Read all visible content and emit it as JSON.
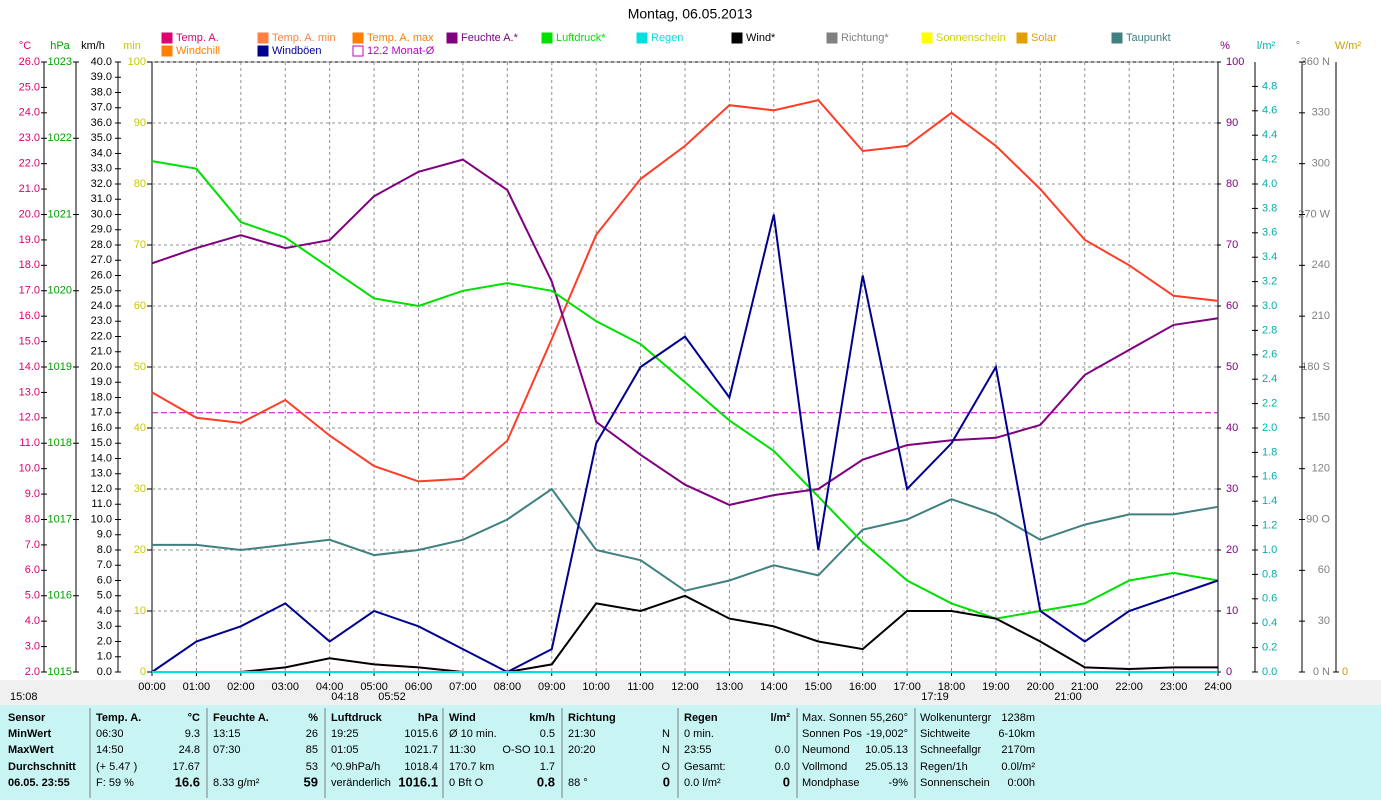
{
  "chart_data": {
    "type": "line",
    "title": "Montag, 06.05.2013",
    "categories": [
      "00:00",
      "01:00",
      "02:00",
      "03:00",
      "04:00",
      "05:00",
      "06:00",
      "07:00",
      "08:00",
      "09:00",
      "10:00",
      "11:00",
      "12:00",
      "13:00",
      "14:00",
      "15:00",
      "16:00",
      "17:00",
      "18:00",
      "19:00",
      "20:00",
      "21:00",
      "22:00",
      "23:00",
      "24:00"
    ],
    "legend": [
      {
        "name": "Temp. A.",
        "color": "#e00070"
      },
      {
        "name": "Windchill",
        "color": "#ff8000"
      },
      {
        "name": "Temp. A. min",
        "color": "#ff8040"
      },
      {
        "name": "Windböen",
        "color": "#000090"
      },
      {
        "name": "Temp. A. max",
        "color": "#ff8000"
      },
      {
        "name": "12.2 Monat-Ø",
        "color": "#c000c0",
        "style": "hollow"
      },
      {
        "name": "Feuchte A.*",
        "color": "#800080"
      },
      {
        "name": "Luftdruck*",
        "color": "#00e000"
      },
      {
        "name": "Regen",
        "color": "#00e0e0"
      },
      {
        "name": "Wind*",
        "color": "#000000"
      },
      {
        "name": "Richtung*",
        "color": "#808080"
      },
      {
        "name": "Sonnenschein",
        "color": "#ffff00"
      },
      {
        "name": "Solar",
        "color": "#e0a000"
      },
      {
        "name": "Taupunkt",
        "color": "#408080"
      }
    ],
    "axes": [
      {
        "unit": "°C",
        "color": "#e00070",
        "lim": [
          2,
          26
        ],
        "ticks": [
          {
            "value": 2,
            "label": "2.0"
          },
          {
            "value": 3,
            "label": "3.0"
          },
          {
            "value": 4,
            "label": "4.0"
          },
          {
            "value": 5,
            "label": "5.0"
          },
          {
            "value": 6,
            "label": "6.0"
          },
          {
            "value": 7,
            "label": "7.0"
          },
          {
            "value": 8,
            "label": "8.0"
          },
          {
            "value": 9,
            "label": "9.0"
          },
          {
            "value": 10,
            "label": "10.0"
          },
          {
            "value": 11,
            "label": "11.0"
          },
          {
            "value": 12,
            "label": "12.0"
          },
          {
            "value": 13,
            "label": "13.0"
          },
          {
            "value": 14,
            "label": "14.0"
          },
          {
            "value": 15,
            "label": "15.0"
          },
          {
            "value": 16,
            "label": "16.0"
          },
          {
            "value": 17,
            "label": "17.0"
          },
          {
            "value": 18,
            "label": "18.0"
          },
          {
            "value": 19,
            "label": "19.0"
          },
          {
            "value": 20,
            "label": "20.0"
          },
          {
            "value": 21,
            "label": "21.0"
          },
          {
            "value": 22,
            "label": "22.0"
          },
          {
            "value": 23,
            "label": "23.0"
          },
          {
            "value": 24,
            "label": "24.0"
          },
          {
            "value": 25,
            "label": "25.0"
          },
          {
            "value": 26,
            "label": "26.0"
          }
        ]
      },
      {
        "unit": "hPa",
        "color": "#00a000",
        "lim": [
          1015,
          1023
        ],
        "ticks": [
          1015,
          1016,
          1017,
          1018,
          1019,
          1020,
          1021,
          1022,
          1023
        ]
      },
      {
        "unit": "km/h",
        "color": "#000000",
        "lim": [
          0,
          40
        ],
        "ticks": [
          {
            "value": 0,
            "label": "0.0"
          },
          {
            "value": 1,
            "label": "1.0"
          },
          {
            "value": 2,
            "label": "2.0"
          },
          {
            "value": 3,
            "label": "3.0"
          },
          {
            "value": 4,
            "label": "4.0"
          },
          {
            "value": 5,
            "label": "5.0"
          },
          {
            "value": 6,
            "label": "6.0"
          },
          {
            "value": 7,
            "label": "7.0"
          },
          {
            "value": 8,
            "label": "8.0"
          },
          {
            "value": 9,
            "label": "9.0"
          },
          {
            "value": 10,
            "label": "10.0"
          },
          {
            "value": 11,
            "label": "11.0"
          },
          {
            "value": 12,
            "label": "12.0"
          },
          {
            "value": 13,
            "label": "13.0"
          },
          {
            "value": 14,
            "label": "14.0"
          },
          {
            "value": 15,
            "label": "15.0"
          },
          {
            "value": 16,
            "label": "16.0"
          },
          {
            "value": 17,
            "label": "17.0"
          },
          {
            "value": 18,
            "label": "18.0"
          },
          {
            "value": 19,
            "label": "19.0"
          },
          {
            "value": 20,
            "label": "20.0"
          },
          {
            "value": 21,
            "label": "21.0"
          },
          {
            "value": 22,
            "label": "22.0"
          },
          {
            "value": 23,
            "label": "23.0"
          },
          {
            "value": 24,
            "label": "24.0"
          },
          {
            "value": 25,
            "label": "25.0"
          },
          {
            "value": 26,
            "label": "26.0"
          },
          {
            "value": 27,
            "label": "27.0"
          },
          {
            "value": 28,
            "label": "28.0"
          },
          {
            "value": 29,
            "label": "29.0"
          },
          {
            "value": 30,
            "label": "30.0"
          },
          {
            "value": 31,
            "label": "31.0"
          },
          {
            "value": 32,
            "label": "32.0"
          },
          {
            "value": 33,
            "label": "33.0"
          },
          {
            "value": 34,
            "label": "34.0"
          },
          {
            "value": 35,
            "label": "35.0"
          },
          {
            "value": 36,
            "label": "36.0"
          },
          {
            "value": 37,
            "label": "37.0"
          },
          {
            "value": 38,
            "label": "38.0"
          },
          {
            "value": 39,
            "label": "39.0"
          },
          {
            "value": 40,
            "label": "40.0"
          }
        ]
      },
      {
        "unit": "min",
        "color": "#c8c800",
        "lim": [
          0,
          100
        ],
        "ticks": [
          0,
          10,
          20,
          30,
          40,
          50,
          60,
          70,
          80,
          90,
          100
        ]
      },
      {
        "unit": "%",
        "color": "#800080",
        "lim": [
          0,
          100
        ],
        "ticks": [
          0,
          10,
          20,
          30,
          40,
          50,
          60,
          70,
          80,
          90,
          100
        ],
        "grid": true
      },
      {
        "unit": "l/m²",
        "color": "#00b0b0",
        "lim": [
          0,
          5
        ],
        "ticks": [
          {
            "value": 0,
            "label": "0.0"
          },
          {
            "value": 0.2,
            "label": "0.2"
          },
          {
            "value": 0.4,
            "label": "0.4"
          },
          {
            "value": 0.6,
            "label": "0.6"
          },
          {
            "value": 0.8,
            "label": "0.8"
          },
          {
            "value": 1,
            "label": "1.0"
          },
          {
            "value": 1.2,
            "label": "1.2"
          },
          {
            "value": 1.4,
            "label": "1.4"
          },
          {
            "value": 1.6,
            "label": "1.6"
          },
          {
            "value": 1.8,
            "label": "1.8"
          },
          {
            "value": 2,
            "label": "2.0"
          },
          {
            "value": 2.2,
            "label": "2.2"
          },
          {
            "value": 2.4,
            "label": "2.4"
          },
          {
            "value": 2.6,
            "label": "2.6"
          },
          {
            "value": 2.8,
            "label": "2.8"
          },
          {
            "value": 3,
            "label": "3.0"
          },
          {
            "value": 3.2,
            "label": "3.2"
          },
          {
            "value": 3.4,
            "label": "3.4"
          },
          {
            "value": 3.6,
            "label": "3.6"
          },
          {
            "value": 3.8,
            "label": "3.8"
          },
          {
            "value": 4,
            "label": "4.0"
          },
          {
            "value": 4.2,
            "label": "4.2"
          },
          {
            "value": 4.4,
            "label": "4.4"
          },
          {
            "value": 4.6,
            "label": "4.6"
          },
          {
            "value": 4.8,
            "label": "4.8"
          }
        ]
      },
      {
        "unit": "°",
        "color": "#808080",
        "lim": [
          0,
          360
        ],
        "ticks": [
          {
            "value": 0,
            "label": "0 N"
          },
          30,
          60,
          {
            "value": 90,
            "label": "90 O"
          },
          120,
          150,
          {
            "value": 180,
            "label": "180 S"
          },
          210,
          240,
          {
            "value": 270,
            "label": "270 W"
          },
          300,
          330,
          {
            "value": 360,
            "label": "360 N"
          }
        ]
      },
      {
        "unit": "W/m²",
        "color": "#c8a000",
        "ticks": [
          0
        ]
      }
    ],
    "series": [
      {
        "legend": 0,
        "color": "#ff3c28",
        "axis": 0,
        "values": [
          13.0,
          12.0,
          11.8,
          12.7,
          11.3,
          10.1,
          9.5,
          9.6,
          11.1,
          15.1,
          19.2,
          21.4,
          22.7,
          24.3,
          24.1,
          24.5,
          22.5,
          22.7,
          24.0,
          22.7,
          21.0,
          19.0,
          18.0,
          16.8,
          16.6
        ]
      },
      {
        "legend": 13,
        "axis": 0,
        "values": [
          7.0,
          7.0,
          6.8,
          7.0,
          7.2,
          6.6,
          6.8,
          7.2,
          8.0,
          9.2,
          6.8,
          6.4,
          5.2,
          5.6,
          6.2,
          5.8,
          7.6,
          8.0,
          8.8,
          8.2,
          7.2,
          7.8,
          8.2,
          8.2,
          8.5
        ]
      },
      {
        "legend": 6,
        "axis": 4,
        "values": [
          67,
          69.5,
          71.6,
          69.5,
          70.8,
          78,
          82,
          84,
          79,
          64,
          41,
          35.6,
          30.7,
          27.4,
          29,
          30,
          34.8,
          37.2,
          38,
          38.4,
          40.5,
          48.7,
          52.8,
          56.9,
          58
        ]
      },
      {
        "legend": 7,
        "axis": 1,
        "values": [
          1021.7,
          1021.6,
          1020.9,
          1020.7,
          1020.3,
          1019.9,
          1019.8,
          1020.0,
          1020.1,
          1020.0,
          1019.6,
          1019.3,
          1018.8,
          1018.3,
          1017.9,
          1017.3,
          1016.7,
          1016.2,
          1015.9,
          1015.7,
          1015.8,
          1015.9,
          1016.2,
          1016.3,
          1016.2
        ]
      },
      {
        "legend": 3,
        "axis": 2,
        "values": [
          0,
          2.0,
          3.0,
          4.5,
          2.0,
          4.0,
          3.0,
          1.5,
          0,
          1.5,
          15.0,
          20.0,
          22.0,
          18.0,
          30.0,
          8.0,
          26.0,
          12.0,
          15.0,
          20.0,
          4.0,
          2.0,
          4.0,
          5.0,
          6.0
        ]
      },
      {
        "legend": 9,
        "axis": 2,
        "values": [
          0,
          0,
          0,
          0.3,
          0.9,
          0.5,
          0.3,
          0,
          0,
          0.5,
          4.5,
          4.0,
          5.0,
          3.5,
          3.0,
          2.0,
          1.5,
          4.0,
          4.0,
          3.5,
          2.0,
          0.3,
          0.2,
          0.3,
          0.3
        ]
      },
      {
        "legend": 8,
        "axis": 5,
        "values": [
          0,
          0,
          0,
          0,
          0,
          0,
          0,
          0,
          0,
          0,
          0,
          0,
          0,
          0,
          0,
          0,
          0,
          0,
          0,
          0,
          0,
          0,
          0,
          0,
          0
        ]
      }
    ],
    "monthly_average": {
      "value": 12.2,
      "axis": 0,
      "legend": 5
    },
    "annotations": [
      "15:08",
      "04:18",
      "05:52",
      "17:19",
      "21:00"
    ]
  },
  "table": {
    "rows": [
      [
        "Sensor",
        "Temp. A.",
        "°C",
        "Feuchte A.",
        "%",
        "Luftdruck",
        "hPa",
        "Wind",
        "km/h",
        "Richtung",
        null,
        "Regen",
        "l/m²",
        "Max. Sonnen",
        "55,260°",
        "Wolkenuntergr",
        "1238m"
      ],
      [
        "MinWert",
        "06:30",
        "9.3",
        "13:15",
        "26",
        "19:25",
        "1015.6",
        "Ø 10 min.",
        "0.5",
        "21:30",
        "N",
        "0 min.",
        null,
        "Sonnen Pos",
        "-19,002°",
        "Sichtweite",
        "6-10km"
      ],
      [
        "MaxWert",
        "14:50",
        "24.8",
        "07:30",
        "85",
        "01:05",
        "1021.7",
        "11:30",
        "O-SO 10.1",
        "20:20",
        "N",
        "23:55",
        "0.0",
        "Neumond",
        "10.05.13",
        "Schneefallgr",
        "2170m"
      ],
      [
        "Durchschnitt",
        "(+ 5.47 )",
        "17.67",
        null,
        "53",
        "^0.9hPa/h",
        "1018.4",
        "170.7 km",
        "1.7",
        null,
        "O",
        "Gesamt:",
        "0.0",
        "Vollmond",
        "25.05.13",
        "Regen/1h",
        "0.0l/m²"
      ],
      [
        "06.05. 23:55",
        "F: 59 %",
        "16.6",
        "8.33 g/m²",
        "59",
        "veränderlich",
        "1016.1",
        "0 Bft O",
        "0.8",
        "88 °",
        "0",
        "0.0 l/m²",
        "0",
        "Mondphase",
        "-9%",
        "Sonnenschein",
        "0:00h"
      ]
    ]
  }
}
